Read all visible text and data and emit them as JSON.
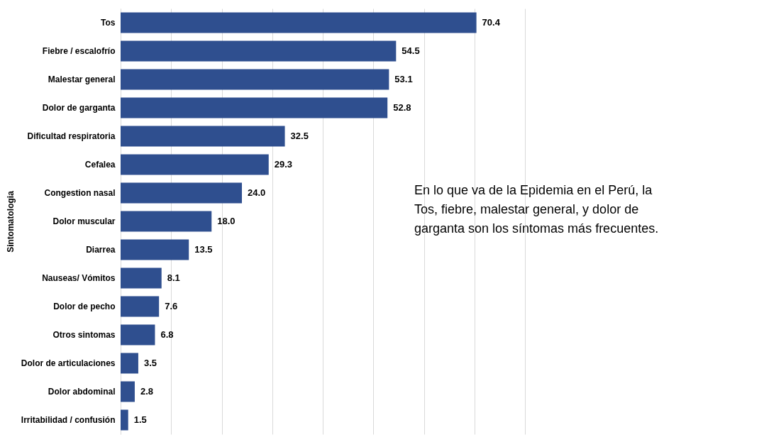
{
  "chart_data": {
    "type": "bar",
    "orientation": "horizontal",
    "ylabel": "Sintomatologia",
    "categories": [
      "Tos",
      "Fiebre / escalofrío",
      "Malestar general",
      "Dolor de garganta",
      "Dificultad respiratoria",
      "Cefalea",
      "Congestion nasal",
      "Dolor muscular",
      "Diarrea",
      "Nauseas/ Vómitos",
      "Dolor de pecho",
      "Otros sintomas",
      "Dolor de articulaciones",
      "Dolor abdominal",
      "Irritabilidad / confusión"
    ],
    "values": [
      70.4,
      54.5,
      53.1,
      52.8,
      32.5,
      29.3,
      24.0,
      18.0,
      13.5,
      8.1,
      7.6,
      6.8,
      3.5,
      2.8,
      1.5
    ],
    "value_labels": [
      "70.4",
      "54.5",
      "53.1",
      "52.8",
      "32.5",
      "29.3",
      "24.0",
      "18.0",
      "13.5",
      "8.1",
      "7.6",
      "6.8",
      "3.5",
      "2.8",
      "1.5"
    ],
    "color": "#2f4f8f",
    "xlim": [
      0,
      80
    ],
    "xticks": [
      {
        "value": 0,
        "label": null
      },
      {
        "value": 10,
        "label": null
      },
      {
        "value": 20,
        "label": null
      },
      {
        "value": 30,
        "label": null
      },
      {
        "value": 40,
        "label": null
      },
      {
        "value": 50,
        "label": null
      },
      {
        "value": 60,
        "label": null
      },
      {
        "value": 70,
        "label": null
      },
      {
        "value": 80,
        "label": null
      }
    ],
    "tick_labels": "y",
    "grid": "x",
    "annotations": [
      "En lo que va de la Epidemia en el Perú, la Tos, fiebre, malestar general, y dolor de garganta son los síntomas más frecuentes."
    ]
  }
}
